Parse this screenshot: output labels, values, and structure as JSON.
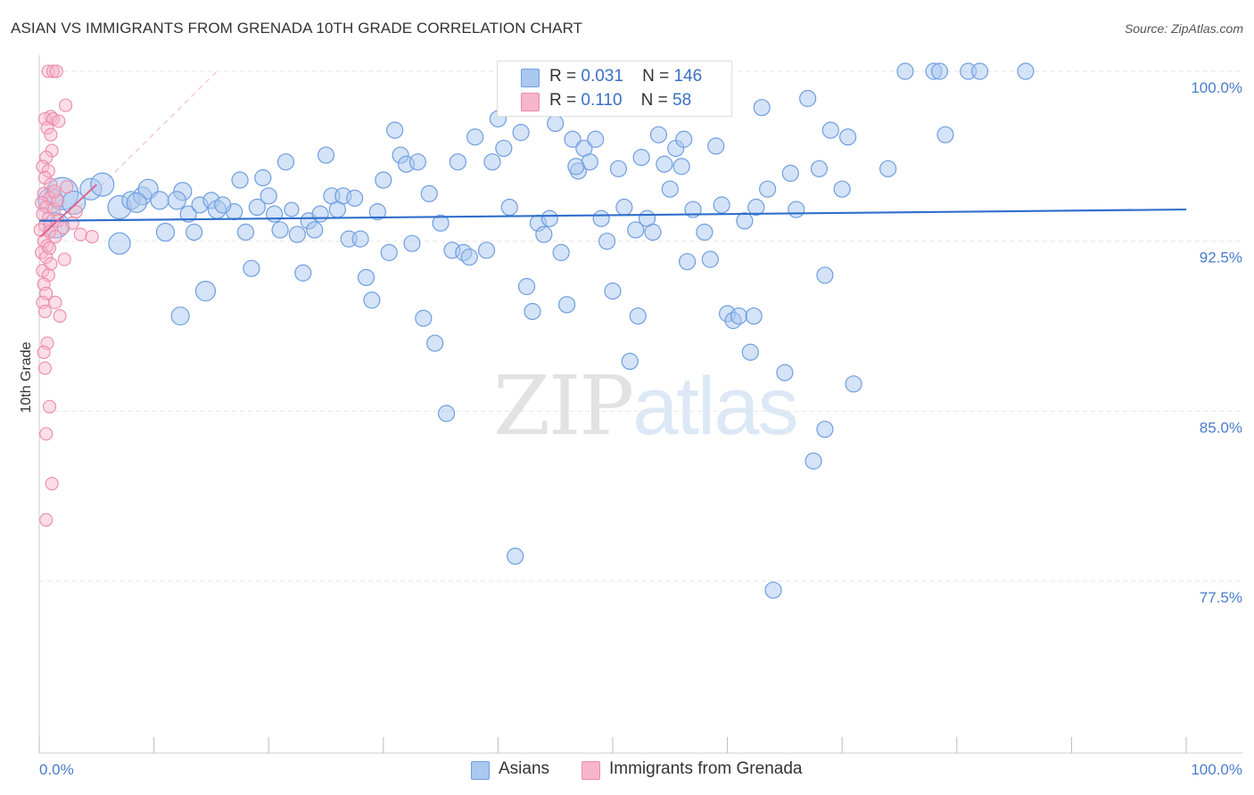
{
  "header": {
    "title": "ASIAN VS IMMIGRANTS FROM GRENADA 10TH GRADE CORRELATION CHART",
    "source": "Source: ZipAtlas.com"
  },
  "watermark": {
    "zip": "ZIP",
    "atlas": "atlas"
  },
  "legend": {
    "asians": {
      "r_label": "R =",
      "r_value": "0.031",
      "n_label": "N =",
      "n_value": "146"
    },
    "grenada": {
      "r_label": "R =",
      "r_value": "0.110",
      "n_label": "N =",
      "n_value": "58"
    }
  },
  "bottom_legend": {
    "asians": "Asians",
    "grenada": "Immigrants from Grenada"
  },
  "colors": {
    "asians_fill": "#a9c7ef",
    "asians_stroke": "#6f9ee0",
    "asians_line": "#2f6fcc",
    "grenada_fill": "#f7b6c9",
    "grenada_stroke": "#ec8aaa",
    "grenada_line": "#e0648e",
    "tick_label": "#4a7cc9"
  },
  "chart_data": {
    "type": "scatter",
    "title": "ASIAN VS IMMIGRANTS FROM GRENADA 10TH GRADE CORRELATION CHART",
    "xlabel": "",
    "ylabel": "10th Grade",
    "xlim": [
      0,
      100
    ],
    "ylim": [
      71.3,
      100.9
    ],
    "x_tick_labels": [
      "0.0%",
      "100.0%"
    ],
    "y_ticks": [
      77.5,
      85.0,
      92.5,
      100.0
    ],
    "y_tick_labels": [
      "77.5%",
      "85.0%",
      "92.5%",
      "100.0%"
    ],
    "grid": true,
    "series": [
      {
        "name": "Asians",
        "R": 0.031,
        "N": 146,
        "trend": {
          "x": [
            0,
            100
          ],
          "y": [
            93.4,
            93.9
          ]
        },
        "points": [
          [
            1,
            94.3,
            14
          ],
          [
            2,
            94.6,
            18
          ],
          [
            1.5,
            93.2,
            14
          ],
          [
            3,
            94.2,
            13
          ],
          [
            4.5,
            94.8,
            12
          ],
          [
            5.5,
            95,
            13
          ],
          [
            7,
            94.0,
            13
          ],
          [
            8,
            94.3,
            10
          ],
          [
            9,
            94.5,
            10
          ],
          [
            9.5,
            94.8,
            11
          ],
          [
            10.5,
            94.3,
            10
          ],
          [
            12.5,
            94.7,
            10
          ],
          [
            7,
            92.4,
            12
          ],
          [
            11,
            92.9,
            10
          ],
          [
            13,
            93.7,
            9
          ],
          [
            13.5,
            92.9,
            9
          ],
          [
            14,
            94.1,
            9
          ],
          [
            15,
            94.3,
            9
          ],
          [
            15.5,
            93.9,
            10
          ],
          [
            17,
            93.8,
            9
          ],
          [
            17.5,
            95.2,
            9
          ],
          [
            18,
            92.9,
            9
          ],
          [
            18.5,
            91.3,
            9
          ],
          [
            19,
            94.0,
            9
          ],
          [
            19.5,
            95.3,
            9
          ],
          [
            20,
            94.5,
            9
          ],
          [
            20.5,
            93.7,
            9
          ],
          [
            21,
            93.0,
            9
          ],
          [
            21.5,
            96.0,
            9
          ],
          [
            22,
            93.9,
            8
          ],
          [
            22.5,
            92.8,
            9
          ],
          [
            23,
            91.1,
            9
          ],
          [
            23.5,
            93.4,
            9
          ],
          [
            24,
            93.0,
            9
          ],
          [
            25,
            96.3,
            9
          ],
          [
            25.5,
            94.5,
            9
          ],
          [
            26,
            93.9,
            9
          ],
          [
            26.5,
            94.5,
            9
          ],
          [
            27,
            92.6,
            9
          ],
          [
            27.5,
            94.4,
            9
          ],
          [
            28,
            92.6,
            9
          ],
          [
            28.5,
            90.9,
            9
          ],
          [
            29,
            89.9,
            9
          ],
          [
            29.5,
            93.8,
            9
          ],
          [
            30,
            95.2,
            9
          ],
          [
            30.5,
            92.0,
            9
          ],
          [
            31,
            97.4,
            9
          ],
          [
            31.5,
            96.3,
            9
          ],
          [
            32,
            95.9,
            9
          ],
          [
            32.5,
            92.4,
            9
          ],
          [
            33,
            96.0,
            9
          ],
          [
            34,
            94.6,
            9
          ],
          [
            34.5,
            88.0,
            9
          ],
          [
            35,
            93.3,
            9
          ],
          [
            35.5,
            84.9,
            9
          ],
          [
            36,
            92.1,
            9
          ],
          [
            36.5,
            96.0,
            9
          ],
          [
            37,
            92.0,
            9
          ],
          [
            38,
            97.1,
            9
          ],
          [
            39,
            92.1,
            9
          ],
          [
            39.5,
            96.0,
            9
          ],
          [
            40,
            97.9,
            9
          ],
          [
            40.5,
            96.6,
            9
          ],
          [
            41,
            94.0,
            9
          ],
          [
            41.5,
            78.6,
            9
          ],
          [
            42,
            97.3,
            9
          ],
          [
            42.5,
            90.5,
            9
          ],
          [
            43,
            89.4,
            9
          ],
          [
            43.5,
            93.3,
            9
          ],
          [
            44,
            92.8,
            9
          ],
          [
            44.5,
            93.5,
            9
          ],
          [
            45,
            97.7,
            9
          ],
          [
            45.5,
            92.0,
            9
          ],
          [
            46,
            89.7,
            9
          ],
          [
            46.5,
            97.0,
            9
          ],
          [
            47,
            95.6,
            9
          ],
          [
            47.5,
            96.6,
            9
          ],
          [
            48,
            96.0,
            9
          ],
          [
            48.5,
            97.0,
            9
          ],
          [
            49,
            93.5,
            9
          ],
          [
            49.5,
            92.5,
            9
          ],
          [
            50,
            90.3,
            9
          ],
          [
            50.5,
            95.7,
            9
          ],
          [
            51,
            94.0,
            9
          ],
          [
            51.5,
            87.2,
            9
          ],
          [
            52,
            93.0,
            9
          ],
          [
            52.5,
            96.2,
            9
          ],
          [
            53,
            93.5,
            9
          ],
          [
            53.5,
            92.9,
            9
          ],
          [
            54,
            97.2,
            9
          ],
          [
            54.5,
            95.9,
            9
          ],
          [
            55,
            94.8,
            9
          ],
          [
            55.5,
            96.6,
            9
          ],
          [
            56,
            95.8,
            9
          ],
          [
            56.5,
            91.6,
            9
          ],
          [
            57,
            93.9,
            9
          ],
          [
            57.5,
            98.5,
            9
          ],
          [
            58,
            92.9,
            9
          ],
          [
            58.5,
            91.7,
            9
          ],
          [
            59,
            96.7,
            9
          ],
          [
            59.5,
            94.1,
            9
          ],
          [
            60,
            89.3,
            9
          ],
          [
            60.5,
            89.0,
            9
          ],
          [
            61,
            89.2,
            9
          ],
          [
            61.5,
            93.4,
            9
          ],
          [
            62,
            87.6,
            9
          ],
          [
            62.5,
            94.0,
            9
          ],
          [
            63,
            98.4,
            9
          ],
          [
            63.5,
            94.8,
            9
          ],
          [
            64,
            77.1,
            9
          ],
          [
            65,
            86.7,
            9
          ],
          [
            65.5,
            95.5,
            9
          ],
          [
            66,
            93.9,
            9
          ],
          [
            67,
            98.8,
            9
          ],
          [
            67.5,
            82.8,
            9
          ],
          [
            68,
            95.7,
            9
          ],
          [
            68.5,
            91.0,
            9
          ],
          [
            68.5,
            84.2,
            9
          ],
          [
            69,
            97.4,
            9
          ],
          [
            70,
            94.8,
            9
          ],
          [
            70.5,
            97.1,
            9
          ],
          [
            71,
            86.2,
            9
          ],
          [
            74,
            95.7,
            9
          ],
          [
            75.5,
            100.0,
            9
          ],
          [
            78,
            100.0,
            9
          ],
          [
            78.5,
            100.0,
            9
          ],
          [
            79,
            97.2,
            9
          ],
          [
            81,
            100.0,
            9
          ],
          [
            82,
            100.0,
            9
          ],
          [
            86,
            100.0,
            9
          ],
          [
            8.5,
            94.2,
            11
          ],
          [
            12,
            94.3,
            10
          ],
          [
            16,
            94.1,
            9
          ],
          [
            24.5,
            93.7,
            9
          ],
          [
            33.5,
            89.1,
            9
          ],
          [
            37.5,
            91.8,
            9
          ],
          [
            46.8,
            95.8,
            9
          ],
          [
            52.2,
            89.2,
            9
          ],
          [
            56.2,
            97.0,
            9
          ],
          [
            62.3,
            89.2,
            9
          ],
          [
            14.5,
            90.3,
            11
          ],
          [
            12.3,
            89.2,
            10
          ]
        ]
      },
      {
        "name": "Immigrants from Grenada",
        "R": 0.11,
        "N": 58,
        "trend": {
          "x": [
            0.1,
            5
          ],
          "y": [
            92.7,
            95.0
          ]
        },
        "points": [
          [
            0.8,
            100.0,
            7
          ],
          [
            1.2,
            100.0,
            7
          ],
          [
            1.5,
            100.0,
            7
          ],
          [
            1.0,
            98.0,
            7
          ],
          [
            0.5,
            97.9,
            7
          ],
          [
            2.3,
            98.5,
            7
          ],
          [
            1.2,
            97.9,
            7
          ],
          [
            1.7,
            97.8,
            7
          ],
          [
            0.7,
            97.5,
            7
          ],
          [
            1.0,
            97.2,
            7
          ],
          [
            1.1,
            96.5,
            7
          ],
          [
            0.6,
            96.2,
            7
          ],
          [
            0.3,
            95.8,
            7
          ],
          [
            0.8,
            95.6,
            7
          ],
          [
            0.5,
            95.3,
            7
          ],
          [
            1.0,
            95.0,
            7
          ],
          [
            0.4,
            94.6,
            7
          ],
          [
            0.9,
            94.4,
            7
          ],
          [
            0.2,
            94.2,
            7
          ],
          [
            0.6,
            94.0,
            7
          ],
          [
            1.3,
            93.9,
            7
          ],
          [
            0.3,
            93.7,
            7
          ],
          [
            0.8,
            93.5,
            7
          ],
          [
            1.6,
            93.4,
            7
          ],
          [
            0.5,
            93.2,
            7
          ],
          [
            0.1,
            93.0,
            7
          ],
          [
            0.9,
            92.9,
            7
          ],
          [
            1.4,
            92.7,
            7
          ],
          [
            0.4,
            92.5,
            7
          ],
          [
            0.7,
            92.3,
            7
          ],
          [
            0.2,
            92.0,
            7
          ],
          [
            0.6,
            91.8,
            7
          ],
          [
            1.0,
            91.5,
            7
          ],
          [
            0.3,
            91.2,
            7
          ],
          [
            0.8,
            91.0,
            7
          ],
          [
            0.4,
            90.6,
            7
          ],
          [
            0.6,
            90.2,
            7
          ],
          [
            0.3,
            89.8,
            7
          ],
          [
            0.5,
            89.4,
            7
          ],
          [
            0.7,
            88.0,
            7
          ],
          [
            0.4,
            87.6,
            7
          ],
          [
            0.5,
            86.9,
            7
          ],
          [
            0.9,
            85.2,
            7
          ],
          [
            0.6,
            84.0,
            7
          ],
          [
            1.1,
            81.8,
            7
          ],
          [
            0.6,
            80.2,
            7
          ],
          [
            2.1,
            93.1,
            7
          ],
          [
            2.9,
            93.3,
            7
          ],
          [
            3.6,
            92.8,
            7
          ],
          [
            4.6,
            92.7,
            7
          ],
          [
            3.2,
            93.8,
            7
          ],
          [
            2.4,
            94.9,
            7
          ],
          [
            1.8,
            89.2,
            7
          ],
          [
            1.4,
            89.8,
            7
          ],
          [
            0.9,
            92.2,
            7
          ],
          [
            1.6,
            94.3,
            7
          ],
          [
            2.2,
            91.7,
            7
          ],
          [
            1.3,
            94.7,
            7
          ]
        ]
      }
    ]
  }
}
